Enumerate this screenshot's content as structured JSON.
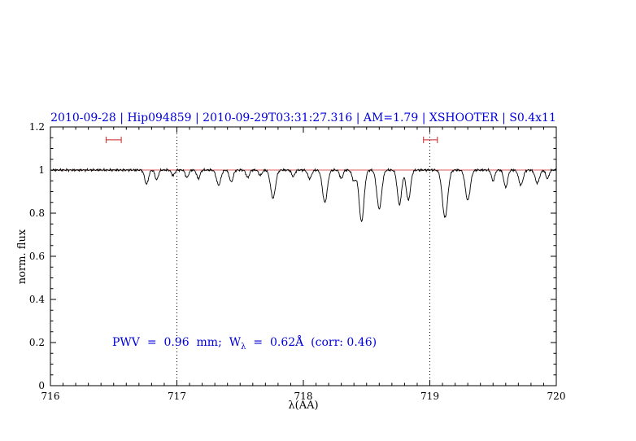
{
  "title": {
    "text": "2010-09-28 | Hip094859 | 2010-09-29T03:31:27.316 | AM=1.79 | XSHOOTER | S0.4x11",
    "color": "#0000dd"
  },
  "annotation": {
    "prefix": "PWV  =  0.96  mm;  W",
    "sub": "λ",
    "suffix": "  =  0.62Å  (corr: 0.46)",
    "color": "#0000dd"
  },
  "chart_data": {
    "type": "line",
    "title": "2010-09-28 | Hip094859 | 2010-09-29T03:31:27.316 | AM=1.79 | XSHOOTER | S0.4x11",
    "xlabel": "λ(AA)",
    "ylabel": "norm. flux",
    "xlim": [
      716,
      720
    ],
    "ylim": [
      0,
      1.2
    ],
    "grid": "off",
    "legend": "none",
    "x_ticks": {
      "major": [
        716,
        717,
        718,
        719,
        720
      ],
      "labels": [
        "716",
        "717",
        "718",
        "719",
        "720"
      ],
      "minor_step": 0.1
    },
    "y_ticks": {
      "major": [
        0,
        0.2,
        0.4,
        0.6,
        0.8,
        1,
        1.2
      ],
      "labels": [
        "0",
        "0.2",
        "0.4",
        "0.6",
        "0.8",
        "1",
        "1.2"
      ],
      "minor_step": 0.05
    },
    "dotted_vlines": [
      717,
      719
    ],
    "continuum": {
      "level": 1.0,
      "color": "#cc2222"
    },
    "spectrum": {
      "color": "#000000",
      "noise_amplitude": 0.004,
      "sample_step": 0.004,
      "absorption_lines": [
        {
          "center": 716.76,
          "depth": 0.065,
          "fwhm": 0.035
        },
        {
          "center": 716.84,
          "depth": 0.045,
          "fwhm": 0.03
        },
        {
          "center": 716.97,
          "depth": 0.025,
          "fwhm": 0.03
        },
        {
          "center": 717.08,
          "depth": 0.035,
          "fwhm": 0.03
        },
        {
          "center": 717.17,
          "depth": 0.04,
          "fwhm": 0.03
        },
        {
          "center": 717.33,
          "depth": 0.07,
          "fwhm": 0.04
        },
        {
          "center": 717.43,
          "depth": 0.055,
          "fwhm": 0.035
        },
        {
          "center": 717.56,
          "depth": 0.035,
          "fwhm": 0.03
        },
        {
          "center": 717.66,
          "depth": 0.025,
          "fwhm": 0.03
        },
        {
          "center": 717.76,
          "depth": 0.13,
          "fwhm": 0.045
        },
        {
          "center": 717.92,
          "depth": 0.03,
          "fwhm": 0.03
        },
        {
          "center": 718.05,
          "depth": 0.04,
          "fwhm": 0.035
        },
        {
          "center": 718.17,
          "depth": 0.15,
          "fwhm": 0.045
        },
        {
          "center": 718.3,
          "depth": 0.04,
          "fwhm": 0.03
        },
        {
          "center": 718.4,
          "depth": 0.05,
          "fwhm": 0.035
        },
        {
          "center": 718.46,
          "depth": 0.24,
          "fwhm": 0.045
        },
        {
          "center": 718.6,
          "depth": 0.18,
          "fwhm": 0.045
        },
        {
          "center": 718.76,
          "depth": 0.16,
          "fwhm": 0.04
        },
        {
          "center": 718.83,
          "depth": 0.14,
          "fwhm": 0.04
        },
        {
          "center": 719.12,
          "depth": 0.22,
          "fwhm": 0.05
        },
        {
          "center": 719.3,
          "depth": 0.14,
          "fwhm": 0.045
        },
        {
          "center": 719.5,
          "depth": 0.05,
          "fwhm": 0.03
        },
        {
          "center": 719.6,
          "depth": 0.08,
          "fwhm": 0.035
        },
        {
          "center": 719.72,
          "depth": 0.07,
          "fwhm": 0.04
        },
        {
          "center": 719.85,
          "depth": 0.06,
          "fwhm": 0.04
        },
        {
          "center": 719.93,
          "depth": 0.04,
          "fwhm": 0.03
        }
      ]
    },
    "range_markers": {
      "y": 1.14,
      "color": "#cc2222",
      "intervals": [
        [
          716.44,
          716.56
        ],
        [
          718.95,
          719.06
        ]
      ]
    }
  }
}
